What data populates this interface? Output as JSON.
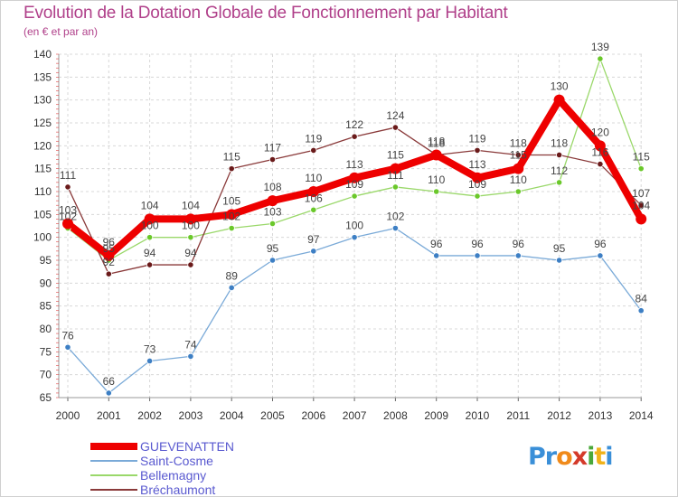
{
  "title": "Evolution de la Dotation Globale de Fonctionnement par Habitant",
  "subtitle": "(en € et par an)",
  "logo": {
    "letters": [
      "P",
      "r",
      "o",
      "x",
      "i",
      "t",
      "i"
    ],
    "colors": [
      "#3a8fd8",
      "#3a8fd8",
      "#f08a1a",
      "#d43a2a",
      "#4aa83a",
      "#f0b21a",
      "#3a8fd8"
    ]
  },
  "chart_data": {
    "type": "line",
    "x": [
      2000,
      2001,
      2002,
      2003,
      2004,
      2005,
      2006,
      2007,
      2008,
      2009,
      2010,
      2011,
      2012,
      2013,
      2014
    ],
    "ylim": [
      65,
      140
    ],
    "yticks": [
      65,
      70,
      75,
      80,
      85,
      90,
      95,
      100,
      105,
      110,
      115,
      120,
      125,
      130,
      135,
      140
    ],
    "grid": true,
    "legend_position": "bottom-left",
    "series": [
      {
        "name": "GUEVENATTEN",
        "color": "#ee0000",
        "marker": "#ee0000",
        "values": [
          103,
          96,
          104,
          104,
          105,
          108,
          110,
          113,
          115,
          118,
          113,
          115,
          130,
          120,
          104
        ]
      },
      {
        "name": "Saint-Cosme",
        "color": "#7aaad8",
        "marker": "#3d7fc4",
        "values": [
          76,
          66,
          73,
          74,
          89,
          95,
          97,
          100,
          102,
          96,
          96,
          96,
          95,
          96,
          84
        ]
      },
      {
        "name": "Bellemagny",
        "color": "#9ad86a",
        "marker": "#6ac82a",
        "values": [
          102,
          95,
          100,
          100,
          102,
          103,
          106,
          109,
          111,
          110,
          109,
          110,
          112,
          139,
          115
        ]
      },
      {
        "name": "Bréchaumont",
        "color": "#8a3a3a",
        "marker": "#6a1a1a",
        "values": [
          111,
          92,
          94,
          94,
          115,
          117,
          119,
          122,
          124,
          118,
          119,
          118,
          118,
          116,
          107
        ]
      }
    ]
  }
}
